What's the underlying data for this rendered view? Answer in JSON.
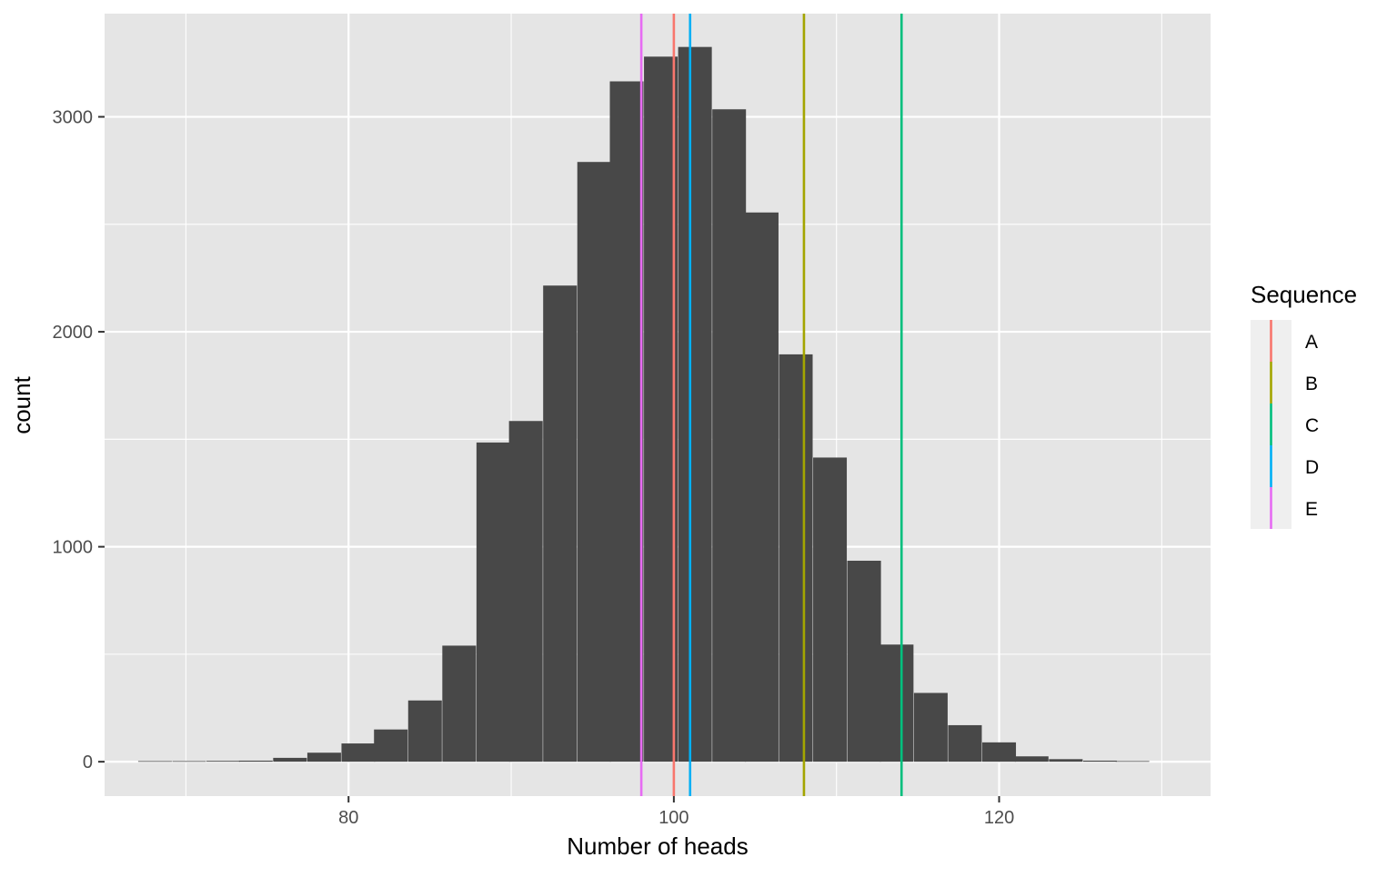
{
  "chart_data": {
    "type": "bar",
    "xlabel": "Number of heads",
    "ylabel": "count",
    "xlim": [
      65,
      133
    ],
    "ylim": [
      -160,
      3480
    ],
    "x_ticks": [
      80,
      100,
      120
    ],
    "x_tick_labels": [
      "80",
      "100",
      "120"
    ],
    "y_ticks": [
      0,
      1000,
      2000,
      3000
    ],
    "y_tick_labels": [
      "0",
      "1000",
      "2000",
      "3000"
    ],
    "grid": true,
    "bin_width": 2.07,
    "bars": [
      {
        "x": 68.1,
        "count": 3
      },
      {
        "x": 70.2,
        "count": 3
      },
      {
        "x": 72.3,
        "count": 4
      },
      {
        "x": 74.3,
        "count": 5
      },
      {
        "x": 76.4,
        "count": 18
      },
      {
        "x": 78.5,
        "count": 42
      },
      {
        "x": 80.6,
        "count": 85
      },
      {
        "x": 82.6,
        "count": 150
      },
      {
        "x": 84.7,
        "count": 285
      },
      {
        "x": 86.8,
        "count": 540
      },
      {
        "x": 88.9,
        "count": 1485
      },
      {
        "x": 90.9,
        "count": 1585
      },
      {
        "x": 93.0,
        "count": 2215
      },
      {
        "x": 95.1,
        "count": 2790
      },
      {
        "x": 97.1,
        "count": 3165
      },
      {
        "x": 99.2,
        "count": 3280
      },
      {
        "x": 101.3,
        "count": 3325
      },
      {
        "x": 103.4,
        "count": 3035
      },
      {
        "x": 105.4,
        "count": 2555
      },
      {
        "x": 107.5,
        "count": 1895
      },
      {
        "x": 109.6,
        "count": 1415
      },
      {
        "x": 111.7,
        "count": 935
      },
      {
        "x": 113.7,
        "count": 545
      },
      {
        "x": 115.8,
        "count": 320
      },
      {
        "x": 117.9,
        "count": 170
      },
      {
        "x": 120.0,
        "count": 90
      },
      {
        "x": 122.0,
        "count": 25
      },
      {
        "x": 124.1,
        "count": 12
      },
      {
        "x": 126.2,
        "count": 5
      },
      {
        "x": 128.2,
        "count": 3
      }
    ],
    "vlines": [
      {
        "name": "A",
        "x": 100,
        "color": "#F8766D"
      },
      {
        "name": "B",
        "x": 108,
        "color": "#A3A500"
      },
      {
        "name": "C",
        "x": 114,
        "color": "#00BF7D"
      },
      {
        "name": "D",
        "x": 101,
        "color": "#00B0F6"
      },
      {
        "name": "E",
        "x": 98,
        "color": "#E76BF3"
      }
    ],
    "legend": {
      "title": "Sequence",
      "position": "right",
      "entries": [
        "A",
        "B",
        "C",
        "D",
        "E"
      ]
    },
    "colors": {
      "bar_fill": "#484848",
      "panel_background": "#E5E5E5",
      "grid": "#FFFFFF",
      "legend_key_background": "#EFEFEF"
    }
  }
}
